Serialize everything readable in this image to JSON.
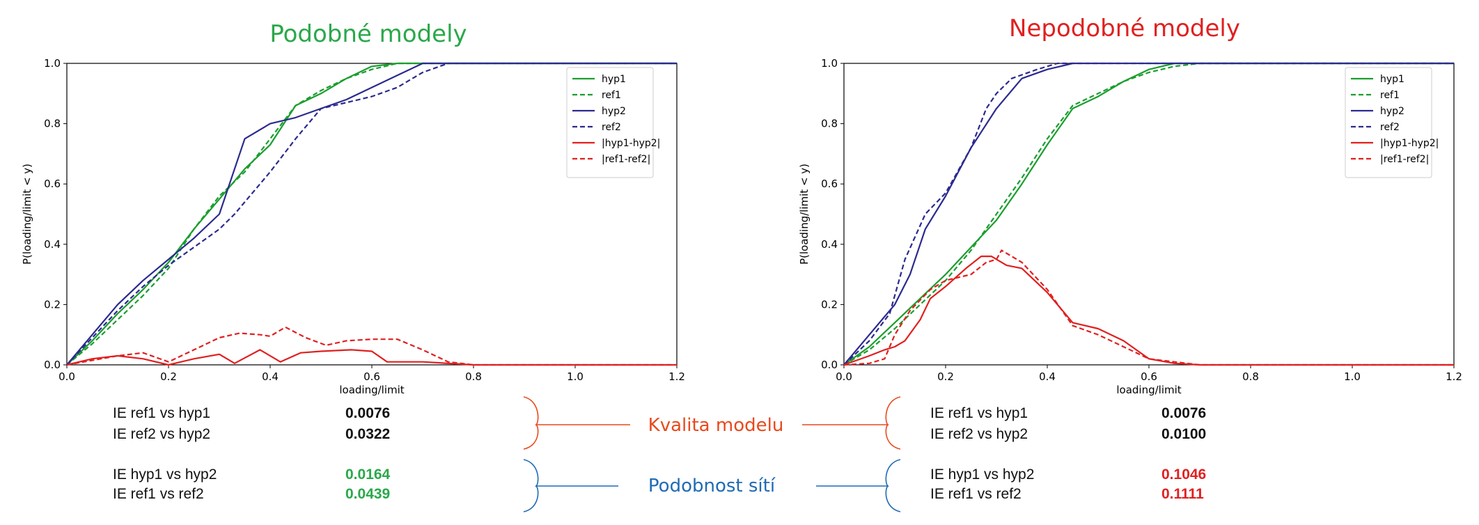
{
  "colors": {
    "green": "#1a9e2e",
    "navy": "#2b2a8f",
    "red": "#e02020",
    "kvalita": "#e8491d",
    "podobnost": "#1f6bb5"
  },
  "chart_data": [
    {
      "type": "line",
      "title": "Podobné modely",
      "title_color": "#2aa84a",
      "xlabel": "loading/limit",
      "ylabel": "P(loading/limit < y)",
      "xlim": [
        0,
        1.2
      ],
      "ylim": [
        0,
        1.0
      ],
      "xticks": [
        "0.0",
        "0.2",
        "0.4",
        "0.6",
        "0.8",
        "1.0",
        "1.2"
      ],
      "yticks": [
        "0.0",
        "0.2",
        "0.4",
        "0.6",
        "0.8",
        "1.0"
      ],
      "grid": false,
      "legend_position": "top-right",
      "series": [
        {
          "name": "hyp1",
          "color": "#1a9e2e",
          "dash": false,
          "points": [
            [
              0,
              0
            ],
            [
              0.05,
              0.08
            ],
            [
              0.1,
              0.17
            ],
            [
              0.15,
              0.25
            ],
            [
              0.2,
              0.34
            ],
            [
              0.25,
              0.45
            ],
            [
              0.3,
              0.55
            ],
            [
              0.35,
              0.65
            ],
            [
              0.4,
              0.73
            ],
            [
              0.45,
              0.86
            ],
            [
              0.5,
              0.9
            ],
            [
              0.55,
              0.95
            ],
            [
              0.6,
              0.99
            ],
            [
              0.65,
              1.0
            ],
            [
              0.8,
              1.0
            ],
            [
              1.2,
              1.0
            ]
          ]
        },
        {
          "name": "ref1",
          "color": "#1a9e2e",
          "dash": true,
          "points": [
            [
              0,
              0
            ],
            [
              0.05,
              0.07
            ],
            [
              0.1,
              0.15
            ],
            [
              0.15,
              0.23
            ],
            [
              0.2,
              0.32
            ],
            [
              0.25,
              0.45
            ],
            [
              0.3,
              0.56
            ],
            [
              0.35,
              0.64
            ],
            [
              0.4,
              0.75
            ],
            [
              0.45,
              0.86
            ],
            [
              0.5,
              0.91
            ],
            [
              0.55,
              0.95
            ],
            [
              0.6,
              0.98
            ],
            [
              0.65,
              1.0
            ],
            [
              0.8,
              1.0
            ],
            [
              1.2,
              1.0
            ]
          ]
        },
        {
          "name": "hyp2",
          "color": "#2b2a8f",
          "dash": false,
          "points": [
            [
              0,
              0
            ],
            [
              0.05,
              0.1
            ],
            [
              0.1,
              0.2
            ],
            [
              0.15,
              0.28
            ],
            [
              0.2,
              0.35
            ],
            [
              0.25,
              0.42
            ],
            [
              0.3,
              0.5
            ],
            [
              0.35,
              0.75
            ],
            [
              0.4,
              0.8
            ],
            [
              0.45,
              0.82
            ],
            [
              0.5,
              0.85
            ],
            [
              0.55,
              0.88
            ],
            [
              0.6,
              0.92
            ],
            [
              0.65,
              0.96
            ],
            [
              0.7,
              1.0
            ],
            [
              0.8,
              1.0
            ],
            [
              1.2,
              1.0
            ]
          ]
        },
        {
          "name": "ref2",
          "color": "#2b2a8f",
          "dash": true,
          "points": [
            [
              0,
              0
            ],
            [
              0.05,
              0.09
            ],
            [
              0.1,
              0.18
            ],
            [
              0.15,
              0.26
            ],
            [
              0.2,
              0.33
            ],
            [
              0.25,
              0.39
            ],
            [
              0.3,
              0.45
            ],
            [
              0.33,
              0.5
            ],
            [
              0.4,
              0.64
            ],
            [
              0.45,
              0.75
            ],
            [
              0.5,
              0.85
            ],
            [
              0.55,
              0.87
            ],
            [
              0.6,
              0.89
            ],
            [
              0.65,
              0.92
            ],
            [
              0.7,
              0.97
            ],
            [
              0.75,
              1.0
            ],
            [
              0.8,
              1.0
            ],
            [
              1.2,
              1.0
            ]
          ]
        },
        {
          "name": "|hyp1-hyp2|",
          "color": "#e02020",
          "dash": false,
          "points": [
            [
              0,
              0
            ],
            [
              0.05,
              0.02
            ],
            [
              0.1,
              0.03
            ],
            [
              0.15,
              0.02
            ],
            [
              0.2,
              0.0
            ],
            [
              0.25,
              0.02
            ],
            [
              0.3,
              0.035
            ],
            [
              0.33,
              0.005
            ],
            [
              0.38,
              0.05
            ],
            [
              0.42,
              0.01
            ],
            [
              0.46,
              0.04
            ],
            [
              0.5,
              0.045
            ],
            [
              0.56,
              0.05
            ],
            [
              0.6,
              0.045
            ],
            [
              0.63,
              0.01
            ],
            [
              0.7,
              0.01
            ],
            [
              0.8,
              0.0
            ],
            [
              1.2,
              0.0
            ]
          ]
        },
        {
          "name": "|ref1-ref2|",
          "color": "#e02020",
          "dash": true,
          "points": [
            [
              0,
              0
            ],
            [
              0.05,
              0.015
            ],
            [
              0.1,
              0.03
            ],
            [
              0.15,
              0.04
            ],
            [
              0.2,
              0.01
            ],
            [
              0.25,
              0.05
            ],
            [
              0.3,
              0.09
            ],
            [
              0.34,
              0.105
            ],
            [
              0.38,
              0.1
            ],
            [
              0.4,
              0.095
            ],
            [
              0.43,
              0.125
            ],
            [
              0.47,
              0.09
            ],
            [
              0.51,
              0.065
            ],
            [
              0.55,
              0.08
            ],
            [
              0.6,
              0.085
            ],
            [
              0.65,
              0.085
            ],
            [
              0.7,
              0.05
            ],
            [
              0.75,
              0.01
            ],
            [
              0.8,
              0.0
            ],
            [
              1.2,
              0.0
            ]
          ]
        }
      ]
    },
    {
      "type": "line",
      "title": "Nepodobné modely",
      "title_color": "#e02020",
      "xlabel": "loading/limit",
      "ylabel": "P(loading/limit < y)",
      "xlim": [
        0,
        1.2
      ],
      "ylim": [
        0,
        1.0
      ],
      "xticks": [
        "0.0",
        "0.2",
        "0.4",
        "0.6",
        "0.8",
        "1.0",
        "1.2"
      ],
      "yticks": [
        "0.0",
        "0.2",
        "0.4",
        "0.6",
        "0.8",
        "1.0"
      ],
      "grid": false,
      "legend_position": "top-right",
      "series": [
        {
          "name": "hyp1",
          "color": "#1a9e2e",
          "dash": false,
          "points": [
            [
              0,
              0
            ],
            [
              0.05,
              0.06
            ],
            [
              0.1,
              0.14
            ],
            [
              0.15,
              0.22
            ],
            [
              0.2,
              0.3
            ],
            [
              0.25,
              0.39
            ],
            [
              0.3,
              0.48
            ],
            [
              0.35,
              0.6
            ],
            [
              0.4,
              0.73
            ],
            [
              0.45,
              0.85
            ],
            [
              0.5,
              0.89
            ],
            [
              0.55,
              0.94
            ],
            [
              0.6,
              0.98
            ],
            [
              0.65,
              1.0
            ],
            [
              0.7,
              1.0
            ],
            [
              1.2,
              1.0
            ]
          ]
        },
        {
          "name": "ref1",
          "color": "#1a9e2e",
          "dash": true,
          "points": [
            [
              0,
              0
            ],
            [
              0.05,
              0.05
            ],
            [
              0.1,
              0.12
            ],
            [
              0.15,
              0.2
            ],
            [
              0.2,
              0.28
            ],
            [
              0.25,
              0.38
            ],
            [
              0.3,
              0.5
            ],
            [
              0.35,
              0.62
            ],
            [
              0.4,
              0.75
            ],
            [
              0.45,
              0.86
            ],
            [
              0.5,
              0.9
            ],
            [
              0.55,
              0.94
            ],
            [
              0.6,
              0.97
            ],
            [
              0.65,
              0.99
            ],
            [
              0.7,
              1.0
            ],
            [
              1.2,
              1.0
            ]
          ]
        },
        {
          "name": "hyp2",
          "color": "#2b2a8f",
          "dash": false,
          "points": [
            [
              0,
              0
            ],
            [
              0.05,
              0.1
            ],
            [
              0.1,
              0.2
            ],
            [
              0.13,
              0.3
            ],
            [
              0.16,
              0.45
            ],
            [
              0.2,
              0.56
            ],
            [
              0.25,
              0.72
            ],
            [
              0.3,
              0.85
            ],
            [
              0.35,
              0.95
            ],
            [
              0.4,
              0.98
            ],
            [
              0.45,
              1.0
            ],
            [
              0.5,
              1.0
            ],
            [
              1.2,
              1.0
            ]
          ]
        },
        {
          "name": "ref2",
          "color": "#2b2a8f",
          "dash": true,
          "points": [
            [
              0,
              0
            ],
            [
              0.05,
              0.08
            ],
            [
              0.09,
              0.17
            ],
            [
              0.12,
              0.35
            ],
            [
              0.16,
              0.5
            ],
            [
              0.2,
              0.57
            ],
            [
              0.25,
              0.72
            ],
            [
              0.28,
              0.85
            ],
            [
              0.3,
              0.9
            ],
            [
              0.33,
              0.95
            ],
            [
              0.38,
              0.98
            ],
            [
              0.42,
              1.0
            ],
            [
              0.5,
              1.0
            ],
            [
              1.2,
              1.0
            ]
          ]
        },
        {
          "name": "|hyp1-hyp2|",
          "color": "#e02020",
          "dash": false,
          "points": [
            [
              0,
              0
            ],
            [
              0.05,
              0.03
            ],
            [
              0.08,
              0.05
            ],
            [
              0.1,
              0.06
            ],
            [
              0.12,
              0.08
            ],
            [
              0.15,
              0.15
            ],
            [
              0.17,
              0.22
            ],
            [
              0.2,
              0.26
            ],
            [
              0.24,
              0.32
            ],
            [
              0.27,
              0.36
            ],
            [
              0.29,
              0.36
            ],
            [
              0.32,
              0.33
            ],
            [
              0.35,
              0.32
            ],
            [
              0.4,
              0.24
            ],
            [
              0.45,
              0.14
            ],
            [
              0.5,
              0.12
            ],
            [
              0.55,
              0.08
            ],
            [
              0.6,
              0.02
            ],
            [
              0.65,
              0.005
            ],
            [
              0.7,
              0.0
            ],
            [
              1.2,
              0.0
            ]
          ]
        },
        {
          "name": "|ref1-ref2|",
          "color": "#e02020",
          "dash": true,
          "points": [
            [
              0,
              0
            ],
            [
              0.05,
              0.005
            ],
            [
              0.08,
              0.02
            ],
            [
              0.1,
              0.1
            ],
            [
              0.13,
              0.18
            ],
            [
              0.17,
              0.25
            ],
            [
              0.2,
              0.28
            ],
            [
              0.25,
              0.3
            ],
            [
              0.28,
              0.34
            ],
            [
              0.3,
              0.35
            ],
            [
              0.31,
              0.38
            ],
            [
              0.35,
              0.34
            ],
            [
              0.4,
              0.25
            ],
            [
              0.45,
              0.13
            ],
            [
              0.5,
              0.1
            ],
            [
              0.55,
              0.06
            ],
            [
              0.6,
              0.02
            ],
            [
              0.65,
              0.01
            ],
            [
              0.7,
              0.0
            ],
            [
              1.2,
              0.0
            ]
          ]
        }
      ]
    }
  ],
  "left_metrics": {
    "kvalita": [
      {
        "label": "IE ref1  vs hyp1",
        "value": "0.0076",
        "color": "#111111"
      },
      {
        "label": "IE ref2  vs hyp2",
        "value": "0.0322",
        "color": "#111111"
      }
    ],
    "podobnost": [
      {
        "label": "IE hyp1  vs hyp2",
        "value": "0.0164",
        "color": "#2aa84a"
      },
      {
        "label": "IE ref1  vs ref2",
        "value": "0.0439",
        "color": "#2aa84a"
      }
    ]
  },
  "right_metrics": {
    "kvalita": [
      {
        "label": "IE ref1  vs hyp1",
        "value": "0.0076",
        "color": "#111111"
      },
      {
        "label": "IE ref2  vs hyp2",
        "value": "0.0100",
        "color": "#111111"
      }
    ],
    "podobnost": [
      {
        "label": "IE hyp1  vs hyp2",
        "value": "0.1046",
        "color": "#e02020"
      },
      {
        "label": "IE ref1  vs ref2",
        "value": "0.1111",
        "color": "#e02020"
      }
    ]
  },
  "middle": {
    "kvalita_label": "Kvalita modelu",
    "podobnost_label": "Podobnost sítí"
  }
}
